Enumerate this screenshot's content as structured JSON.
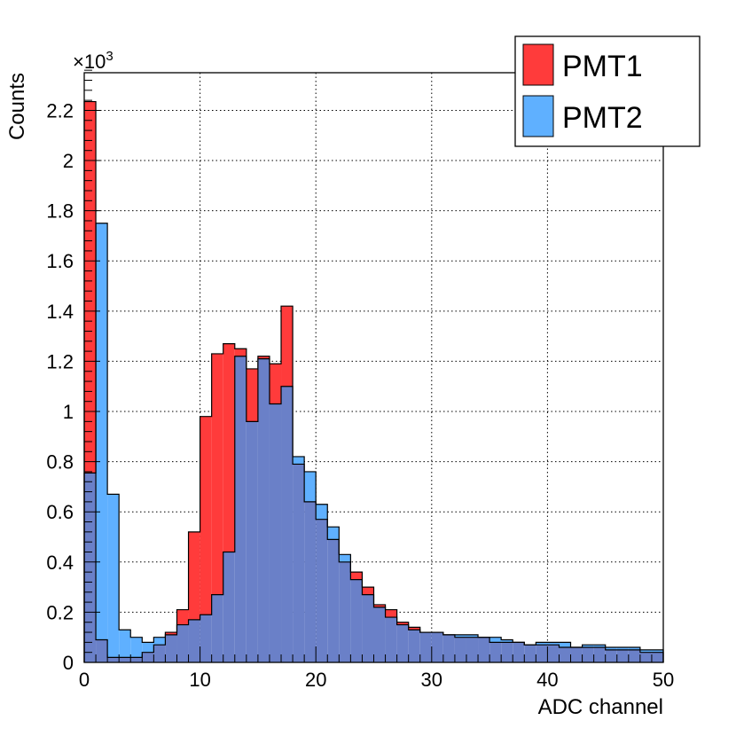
{
  "chart_data": {
    "type": "bar",
    "histogram": true,
    "x_bin_width": 1,
    "x_start": 0,
    "xlim": [
      0,
      50
    ],
    "ylim": [
      0,
      2.35
    ],
    "xlabel": "ADC channel",
    "ylabel": "Counts",
    "y_multiplier": "×10",
    "y_multiplier_exp": "3",
    "grid": true,
    "legend_position": "top-right",
    "x_ticks": [
      "0",
      "10",
      "20",
      "30",
      "40",
      "50"
    ],
    "y_ticks": [
      "0",
      "0.2",
      "0.4",
      "0.6",
      "0.8",
      "1",
      "1.2",
      "1.4",
      "1.6",
      "1.8",
      "2",
      "2.2"
    ],
    "overlap_color": "#6a80c8",
    "series": [
      {
        "name": "PMT1",
        "color": "#ff3b3b",
        "values": [
          2.235,
          0.09,
          0.02,
          0.02,
          0.02,
          0.04,
          0.07,
          0.12,
          0.21,
          0.52,
          0.98,
          1.23,
          1.27,
          1.25,
          1.17,
          1.22,
          1.19,
          1.42,
          0.79,
          0.64,
          0.57,
          0.49,
          0.4,
          0.36,
          0.3,
          0.23,
          0.21,
          0.16,
          0.14,
          0.12,
          0.12,
          0.11,
          0.1,
          0.1,
          0.1,
          0.08,
          0.08,
          0.08,
          0.07,
          0.07,
          0.07,
          0.06,
          0.06,
          0.06,
          0.06,
          0.05,
          0.05,
          0.05,
          0.04,
          0.04
        ]
      },
      {
        "name": "PMT2",
        "color": "#5fb0ff",
        "values": [
          0.755,
          1.75,
          0.67,
          0.13,
          0.1,
          0.08,
          0.1,
          0.11,
          0.15,
          0.17,
          0.19,
          0.27,
          0.44,
          1.22,
          0.96,
          1.21,
          1.03,
          1.1,
          0.82,
          0.76,
          0.63,
          0.54,
          0.43,
          0.33,
          0.27,
          0.22,
          0.18,
          0.15,
          0.13,
          0.12,
          0.12,
          0.11,
          0.11,
          0.11,
          0.1,
          0.1,
          0.09,
          0.08,
          0.07,
          0.08,
          0.08,
          0.08,
          0.06,
          0.07,
          0.07,
          0.06,
          0.06,
          0.06,
          0.05,
          0.05
        ]
      }
    ]
  }
}
